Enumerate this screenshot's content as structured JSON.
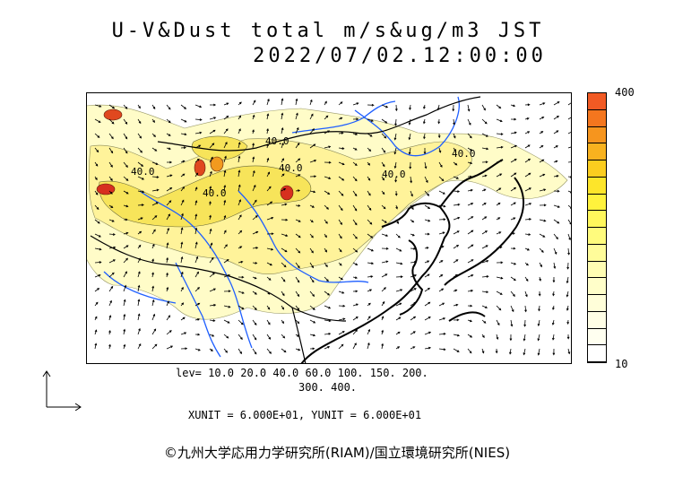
{
  "header": {
    "title": "U-V&Dust total m/s&ug/m3 JST",
    "datetime": "2022/07/02.12:00:00"
  },
  "map": {
    "contour_labels": [
      "40.0",
      "40.0",
      "40.0",
      "40.0",
      "40.0",
      "40.0"
    ],
    "colors": {
      "ocean": "#ffffff",
      "coast": "#000000",
      "rivers": "#1f5fff",
      "dust_light": "#ffffd0",
      "dust_mid": "#fff59a",
      "dust_yellow": "#f5e25a",
      "dust_orange": "#f29a1f",
      "dust_red": "#d7301f"
    }
  },
  "colorbar": {
    "max_label": "400",
    "min_label": "10",
    "colors": [
      "#f15a24",
      "#f4761e",
      "#f6951e",
      "#f8b21f",
      "#fbcd1f",
      "#fde52a",
      "#fff23d",
      "#fff75c",
      "#fffb7d",
      "#fffc9a",
      "#fffdb3",
      "#fffec9",
      "#fffed9",
      "#fffee6",
      "#fffff0",
      "#ffffff"
    ]
  },
  "legend": {
    "levels_line1": "lev= 10.0 20.0 40.0 60.0 100. 150. 200.",
    "levels_line2": "300. 400.",
    "units": "XUNIT = 6.000E+01, YUNIT = 6.000E+01"
  },
  "footer": {
    "copyright": "©九州大学応用力学研究所(RIAM)/国立環境研究所(NIES)"
  }
}
